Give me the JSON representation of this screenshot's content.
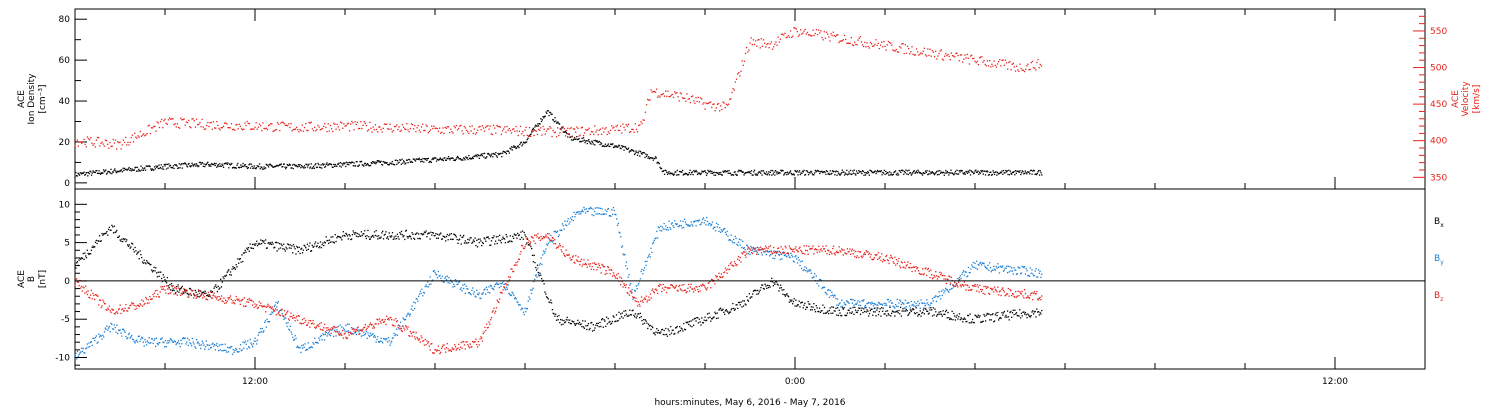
{
  "colors": {
    "black": "#000000",
    "red": "#e8231d",
    "blue": "#1a7fd4"
  },
  "xaxis": {
    "tick_labels": [
      "12:00",
      "0:00",
      "12:00"
    ],
    "label": "hours:minutes, May  6, 2016 - May  7, 2016"
  },
  "chart_data": [
    {
      "type": "scatter",
      "panel": "top",
      "ylabel_left": [
        "ACE",
        "Ion Density",
        "[cm⁻³]"
      ],
      "ylabel_right": [
        "ACE",
        "Velocity",
        "[km/s]"
      ],
      "x_unit": "hours since 2016-05-06 00:00",
      "xlim": [
        8,
        38
      ],
      "ylim_left": [
        -3,
        85
      ],
      "ylim_right": [
        334,
        580
      ],
      "left_ticks": [
        "0",
        "20",
        "40",
        "60",
        "80"
      ],
      "right_ticks": [
        "350",
        "400",
        "450",
        "500",
        "550"
      ],
      "series": [
        {
          "axis": "left",
          "color": "black",
          "x": [
            8.0,
            9.0,
            10.0,
            11.0,
            12.0,
            13.0,
            14.0,
            15.0,
            16.5,
            17.5,
            18.0,
            18.5,
            19.0,
            20.0,
            20.9,
            21.1,
            22.0,
            24.0,
            26.0,
            28.0,
            29.5
          ],
          "y": [
            4,
            6,
            8,
            9,
            8,
            8,
            9,
            10,
            12,
            14,
            20,
            35,
            22,
            18,
            12,
            5,
            5,
            5,
            5,
            5,
            5
          ]
        },
        {
          "axis": "right",
          "color": "red",
          "x": [
            8.0,
            9.0,
            10.0,
            11.0,
            12.0,
            13.0,
            14.0,
            15.0,
            16.0,
            17.0,
            18.0,
            19.0,
            20.0,
            20.6,
            20.8,
            21.5,
            22.0,
            22.5,
            23.0,
            23.5,
            24.0,
            24.5,
            25.0,
            26.0,
            27.0,
            28.0,
            29.0,
            29.5
          ],
          "y": [
            400,
            395,
            425,
            422,
            420,
            418,
            420,
            418,
            415,
            415,
            413,
            412,
            415,
            420,
            468,
            460,
            450,
            445,
            535,
            532,
            550,
            545,
            540,
            530,
            520,
            510,
            500,
            505
          ]
        }
      ]
    },
    {
      "type": "scatter",
      "panel": "bottom",
      "ylabel": [
        "ACE",
        "B",
        "[nT]"
      ],
      "x_unit": "hours since 2016-05-06 00:00",
      "xlim": [
        8,
        38
      ],
      "ylim": [
        -11.5,
        12
      ],
      "ticks": [
        "10",
        "5",
        "0",
        "-5",
        "-10"
      ],
      "legend": [
        "B",
        "B",
        "B"
      ],
      "legend_subscripts": [
        "x",
        "y",
        "z"
      ],
      "series": [
        {
          "name": "Bx",
          "color": "black",
          "x": [
            8.0,
            8.8,
            9.5,
            10.2,
            11.0,
            12.0,
            13.0,
            14.0,
            15.0,
            16.0,
            17.0,
            18.0,
            18.7,
            19.5,
            20.4,
            21.0,
            22.0,
            22.8,
            23.5,
            24.0,
            25.0,
            26.0,
            27.0,
            28.0,
            29.5
          ],
          "y": [
            2,
            7,
            3,
            -1,
            -2,
            5,
            4,
            6,
            6,
            6,
            5,
            6,
            -5,
            -6,
            -4,
            -7,
            -5,
            -3,
            0,
            -3,
            -4,
            -4,
            -4,
            -5,
            -4
          ]
        },
        {
          "name": "By",
          "color": "blue",
          "x": [
            8.0,
            8.8,
            9.5,
            10.5,
            11.5,
            12.0,
            12.5,
            13.0,
            14.0,
            15.0,
            16.0,
            17.0,
            17.5,
            18.0,
            18.5,
            19.2,
            20.0,
            20.4,
            21.0,
            22.0,
            23.0,
            24.0,
            25.0,
            26.0,
            27.0,
            28.0,
            29.5
          ],
          "y": [
            -10,
            -6,
            -8,
            -8,
            -9,
            -8,
            -3,
            -9,
            -6,
            -8,
            1,
            -2,
            0,
            -4,
            5,
            9,
            9,
            -2,
            7,
            8,
            4,
            3,
            -3,
            -3,
            -3,
            2,
            1
          ]
        },
        {
          "name": "Bz",
          "color": "red",
          "x": [
            8.0,
            8.8,
            9.5,
            10.0,
            11.0,
            12.0,
            13.0,
            14.0,
            15.0,
            16.0,
            17.0,
            18.0,
            18.5,
            19.0,
            20.0,
            20.5,
            21.0,
            22.0,
            23.0,
            24.0,
            25.0,
            26.0,
            27.0,
            28.0,
            29.5
          ],
          "y": [
            0,
            -4,
            -3,
            -1,
            -2,
            -3,
            -5,
            -7,
            -5,
            -9,
            -8,
            5,
            6,
            3,
            1,
            -3,
            -1,
            -1,
            4,
            4,
            4,
            3,
            1,
            -1,
            -2
          ]
        }
      ]
    }
  ]
}
